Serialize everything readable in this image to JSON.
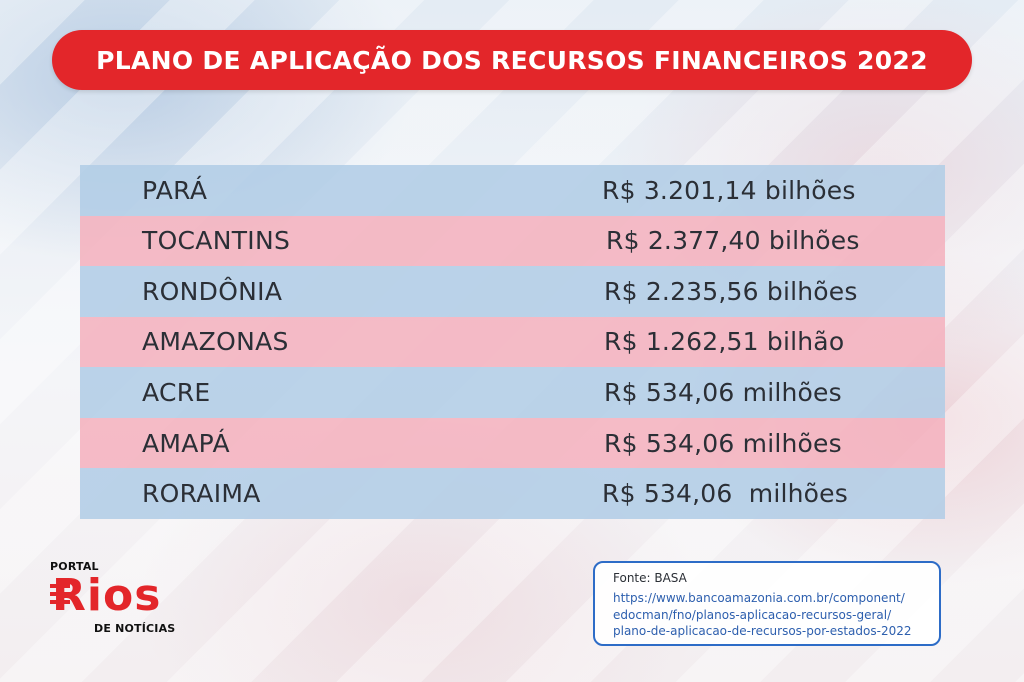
{
  "title": "PLANO DE APLICAÇÃO DOS RECURSOS FINANCEIROS 2022",
  "rows": [
    {
      "state": "PARÁ",
      "value": "R$ 3.201,14 bilhões"
    },
    {
      "state": "TOCANTINS",
      "value": "R$ 2.377,40 bilhões"
    },
    {
      "state": "RONDÔNIA",
      "value": "R$ 2.235,56 bilhões"
    },
    {
      "state": "AMAZONAS",
      "value": "R$ 1.262,51 bilhão"
    },
    {
      "state": "ACRE",
      "value": "R$ 534,06 milhões"
    },
    {
      "state": "AMAPÁ",
      "value": "R$ 534,06 milhões"
    },
    {
      "state": "RORAIMA",
      "value": "R$ 534,06  milhões"
    }
  ],
  "logo": {
    "top_text": "PORTAL",
    "main_text": "Rios",
    "bottom_text": "DE NOTÍCIAS"
  },
  "source": {
    "label": "Fonte: BASA",
    "url_lines": [
      "https://www.bancoamazonia.com.br/component/",
      "edocman/fno/planos-aplicacao-recursos-geral/",
      "plano-de-aplicacao-de-recursos-por-estados-2022"
    ]
  },
  "colors": {
    "title_bar": "#e3262a",
    "row_blue": "#b2cde6",
    "row_pink": "#f4b2be",
    "source_border": "#2d6cc7"
  }
}
